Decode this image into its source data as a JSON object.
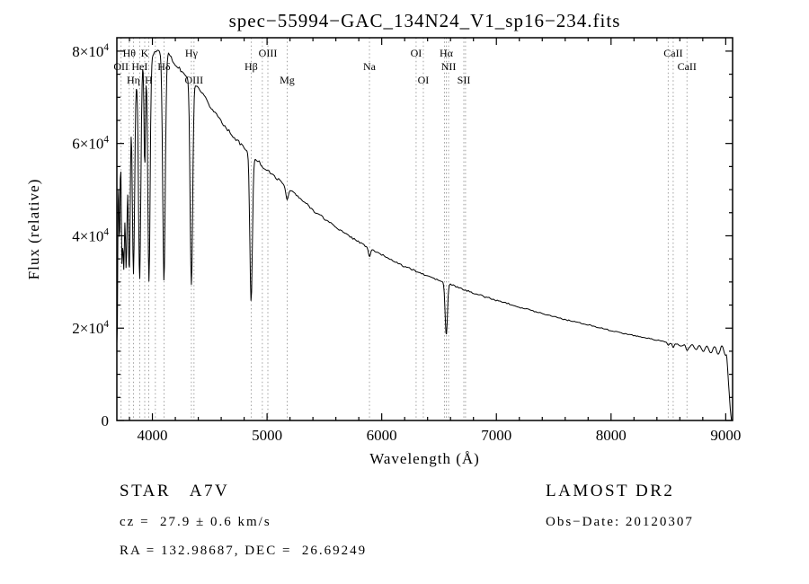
{
  "title": "spec−55994−GAC_134N24_V1_sp16−234.fits",
  "footer": {
    "star_class": "STAR   A7V",
    "survey": "LAMOST DR2",
    "cz": "cz =  27.9 ± 0.6 km/s",
    "obs_date": "Obs−Date: 20120307",
    "ra_dec": "RA = 132.98687, DEC =  26.69249"
  },
  "chart_data": {
    "type": "line",
    "title": "spec−55994−GAC_134N24_V1_sp16−234.fits",
    "xlabel": "Wavelength (Å)",
    "ylabel": "Flux (relative)",
    "xlim": [
      3690,
      9060
    ],
    "ylim": [
      0,
      82900
    ],
    "grid": false,
    "line_color": "#000000",
    "dotted_line_color": "#8a8a8a",
    "x_ticks": {
      "values": [
        4000,
        5000,
        6000,
        7000,
        8000,
        9000
      ],
      "labels": [
        "4000",
        "5000",
        "6000",
        "7000",
        "8000",
        "9000"
      ],
      "minor_step": 200
    },
    "y_ticks": {
      "values": [
        0,
        20000,
        40000,
        60000,
        80000
      ],
      "labels": [
        "0",
        "2×10^4",
        "4×10^4",
        "6×10^4",
        "8×10^4"
      ],
      "minor_step": 5000
    },
    "spectral_line_labels": [
      {
        "label": "Hθ",
        "wavelength": 3798,
        "row": 0
      },
      {
        "label": "K",
        "wavelength": 3933,
        "row": 0
      },
      {
        "label": "Hγ",
        "wavelength": 4340,
        "row": 0
      },
      {
        "label": "OIII",
        "wavelength": 5007,
        "row": 0
      },
      {
        "label": "OI",
        "wavelength": 6300,
        "row": 0
      },
      {
        "label": "Hα",
        "wavelength": 6563,
        "row": 0
      },
      {
        "label": "CaII",
        "wavelength": 8542,
        "row": 0
      },
      {
        "label": "OII",
        "wavelength": 3727,
        "row": 1
      },
      {
        "label": "HeI",
        "wavelength": 3889,
        "row": 1
      },
      {
        "label": "Hδ",
        "wavelength": 4101,
        "row": 1
      },
      {
        "label": "Hβ",
        "wavelength": 4861,
        "row": 1
      },
      {
        "label": "Na",
        "wavelength": 5893,
        "row": 1
      },
      {
        "label": "NII",
        "wavelength": 6583,
        "row": 1
      },
      {
        "label": "CaII",
        "wavelength": 8662,
        "row": 1
      },
      {
        "label": "Hη",
        "wavelength": 3835,
        "row": 2
      },
      {
        "label": "H",
        "wavelength": 3968,
        "row": 2
      },
      {
        "label": "OIII",
        "wavelength": 4363,
        "row": 2
      },
      {
        "label": "Mg",
        "wavelength": 5175,
        "row": 2
      },
      {
        "label": "OI",
        "wavelength": 6363,
        "row": 2
      },
      {
        "label": "SII",
        "wavelength": 6716,
        "row": 2
      }
    ],
    "dotted_lines": [
      3727,
      3798,
      3835,
      3889,
      3933,
      3968,
      4026,
      4101,
      4340,
      4363,
      4861,
      4959,
      5007,
      5175,
      5893,
      6300,
      6363,
      6548,
      6563,
      6583,
      6716,
      6731,
      8498,
      8542,
      8662
    ],
    "continuum_points": {
      "wavelength": [
        3690,
        3750,
        3800,
        3850,
        3900,
        3950,
        4000,
        4050,
        4100,
        4150,
        4200,
        4300,
        4400,
        4500,
        4600,
        4700,
        4800,
        4900,
        5000,
        5100,
        5200,
        5300,
        5400,
        5500,
        5600,
        5700,
        5800,
        5900,
        6000,
        6100,
        6200,
        6300,
        6400,
        6500,
        6600,
        6700,
        6800,
        6900,
        7000,
        7100,
        7200,
        7300,
        7400,
        7500,
        7600,
        7700,
        7800,
        7900,
        8000,
        8100,
        8200,
        8300,
        8400,
        8500,
        8600,
        8700,
        8800,
        8900,
        9000,
        9060
      ],
      "flux": [
        64000,
        70000,
        73000,
        75000,
        77000,
        78500,
        79500,
        80000,
        79800,
        79000,
        77200,
        74400,
        71800,
        68200,
        64800,
        61800,
        59000,
        56600,
        54200,
        52200,
        50100,
        47800,
        45700,
        43700,
        42000,
        40200,
        38700,
        37200,
        35900,
        34600,
        33400,
        32300,
        31300,
        30300,
        29400,
        28500,
        27600,
        26800,
        26000,
        25300,
        24600,
        23900,
        23200,
        22500,
        21900,
        21300,
        20700,
        20100,
        19500,
        18900,
        18400,
        17900,
        17400,
        16900,
        16400,
        16000,
        15600,
        15300,
        15000,
        14800
      ]
    },
    "absorption_lines": [
      {
        "center": 3692,
        "sigma": 5,
        "depth": 0.8
      },
      {
        "center": 3712,
        "sigma": 6,
        "depth": 0.42
      },
      {
        "center": 3734,
        "sigma": 6,
        "depth": 0.46
      },
      {
        "center": 3750,
        "sigma": 7,
        "depth": 0.5
      },
      {
        "center": 3771,
        "sigma": 8,
        "depth": 0.53
      },
      {
        "center": 3798,
        "sigma": 9,
        "depth": 0.56
      },
      {
        "center": 3835,
        "sigma": 10,
        "depth": 0.58
      },
      {
        "center": 3889,
        "sigma": 10,
        "depth": 0.6
      },
      {
        "center": 3933,
        "sigma": 6,
        "depth": 0.3
      },
      {
        "center": 3970,
        "sigma": 10,
        "depth": 0.62
      },
      {
        "center": 4101,
        "sigma": 11,
        "depth": 0.62
      },
      {
        "center": 4340,
        "sigma": 11,
        "depth": 0.6
      },
      {
        "center": 4861,
        "sigma": 11,
        "depth": 0.55
      },
      {
        "center": 5175,
        "sigma": 12,
        "depth": 0.05
      },
      {
        "center": 5893,
        "sigma": 9,
        "depth": 0.05
      },
      {
        "center": 6563,
        "sigma": 10,
        "depth": 0.38
      },
      {
        "center": 8498,
        "sigma": 8,
        "depth": 0.04
      },
      {
        "center": 8542,
        "sigma": 9,
        "depth": 0.05
      },
      {
        "center": 8662,
        "sigma": 9,
        "depth": 0.05
      }
    ],
    "fringing": {
      "start": 8560,
      "end": 9010,
      "period": 65,
      "amplitude_max": 0.07
    },
    "red_cutoff": {
      "start": 9008,
      "end": 9052
    },
    "noise": {
      "base_amplitude": 0.008,
      "blue_extra": 0.03,
      "blue_limit": 4050,
      "red_extra": 0.006
    }
  }
}
